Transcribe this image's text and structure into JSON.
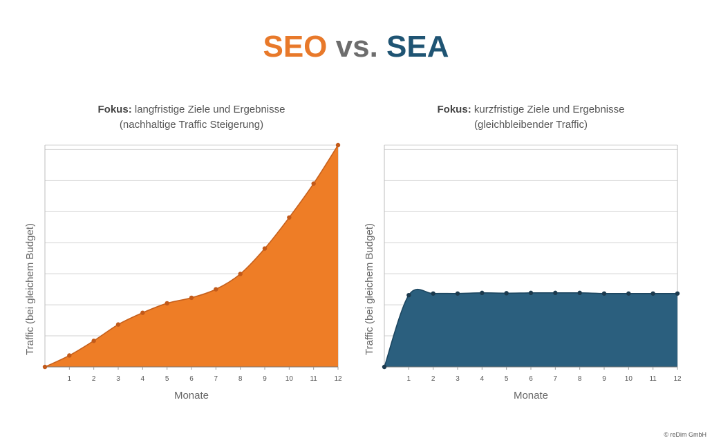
{
  "header": {
    "title_part1": "SEO",
    "title_part2": "vs.",
    "title_part3": "SEA",
    "colors": {
      "seo": "#e8792a",
      "vs": "#6d6d6d",
      "sea": "#1f5473"
    }
  },
  "chart_data": [
    {
      "type": "area",
      "title_bold": "Fokus:",
      "title": "langfristige Ziele und Ergebnisse",
      "subtitle": "(nachhaltige Traffic Steigerung)",
      "xlabel": "Monate",
      "ylabel": "Traffic (bei gleichem Budget)",
      "x": [
        0,
        1,
        2,
        3,
        4,
        5,
        6,
        7,
        8,
        9,
        10,
        11,
        12
      ],
      "x_tick_labels": [
        "1",
        "2",
        "3",
        "4",
        "5",
        "6",
        "7",
        "8",
        "9",
        "10",
        "11",
        "12"
      ],
      "values": [
        0,
        0.35,
        0.8,
        1.3,
        1.66,
        1.95,
        2.12,
        2.38,
        2.85,
        3.63,
        4.58,
        5.62,
        6.8
      ],
      "xlim": [
        0,
        12
      ],
      "ylim": [
        0,
        6.8
      ],
      "grid": true,
      "fill_color": "#ee7d26",
      "line_color": "#c6601c",
      "marker_color": "#c25a1a"
    },
    {
      "type": "area",
      "title_bold": "Fokus:",
      "title": "kurzfristige Ziele und Ergebnisse",
      "subtitle": "(gleichbleibender Traffic)",
      "xlabel": "Monate",
      "ylabel": "Traffic (bei gleichem Budget)",
      "x": [
        0,
        1,
        2,
        3,
        4,
        5,
        6,
        7,
        8,
        9,
        10,
        11,
        12
      ],
      "x_tick_labels": [
        "1",
        "2",
        "3",
        "4",
        "5",
        "6",
        "7",
        "8",
        "9",
        "10",
        "11",
        "12"
      ],
      "values": [
        0,
        2.2,
        2.25,
        2.25,
        2.27,
        2.26,
        2.27,
        2.27,
        2.27,
        2.25,
        2.25,
        2.25,
        2.25
      ],
      "xlim": [
        0,
        12
      ],
      "ylim": [
        0,
        6.8
      ],
      "grid": true,
      "fill_color": "#2b5f7e",
      "line_color": "#1c4660",
      "marker_color": "#1c3a4e"
    }
  ],
  "footer": {
    "copyright": "© reDim GmbH"
  }
}
